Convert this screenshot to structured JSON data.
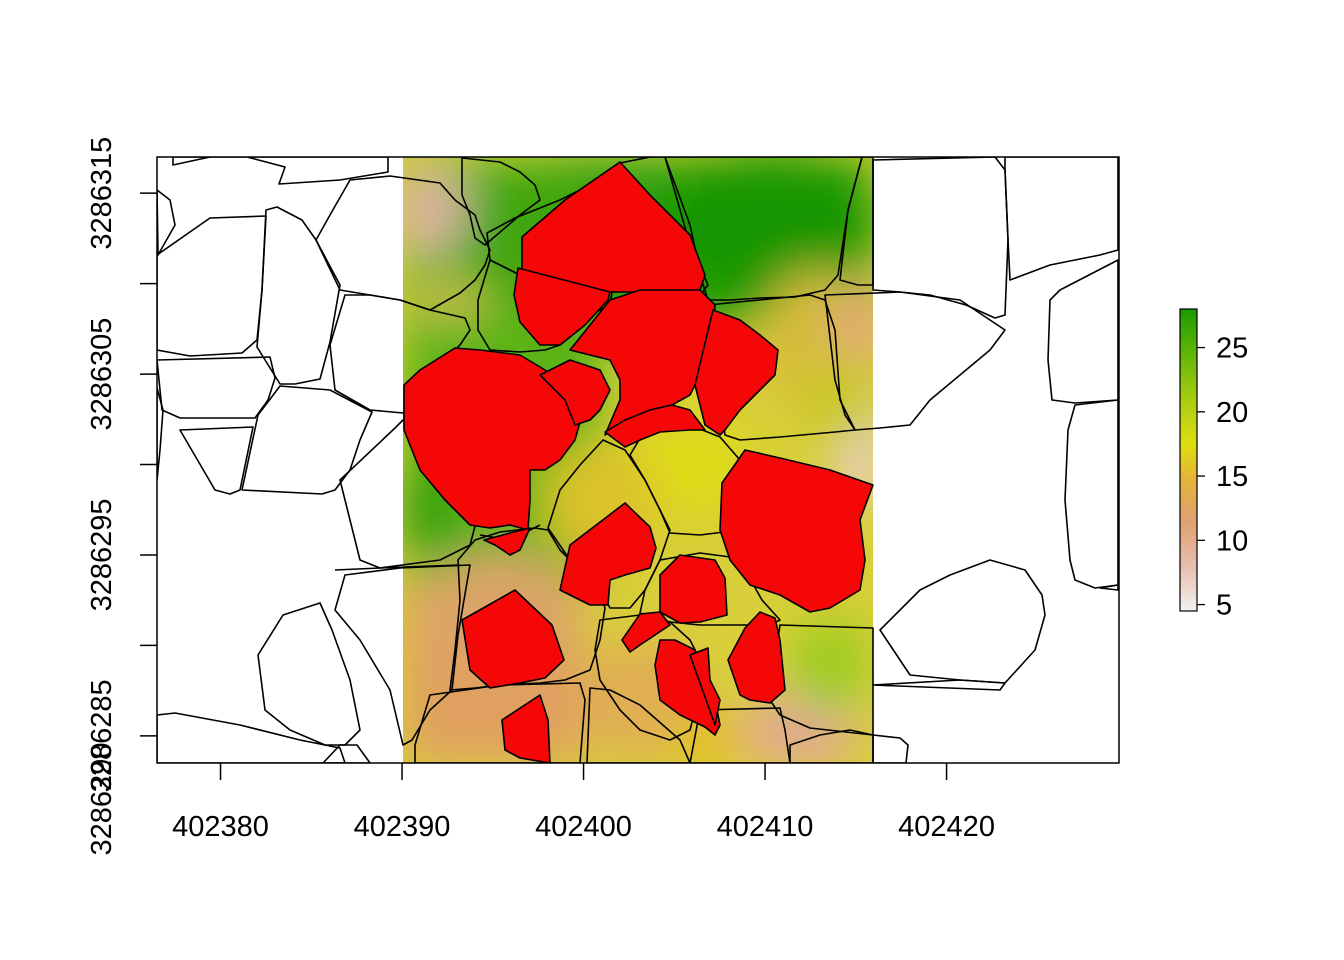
{
  "chart_data": {
    "type": "heatmap",
    "title": "",
    "xlabel": "",
    "ylabel": "",
    "xlim": [
      402376.5,
      402429.5
    ],
    "ylim": [
      3286283.5,
      3286317
    ],
    "raster_extent": {
      "x": [
        402390,
        402416
      ],
      "y": [
        3286283.5,
        3286317
      ]
    },
    "x_ticks": [
      402380,
      402390,
      402400,
      402410,
      402420
    ],
    "y_ticks": [
      3286285,
      3286290,
      3286295,
      3286300,
      3286305,
      3286310,
      3286315
    ],
    "x_tick_labels": [
      "402380",
      "402390",
      "402400",
      "402410",
      "402420"
    ],
    "y_tick_labels": [
      "3286285",
      "",
      "3286295",
      "",
      "3286305",
      "",
      "3286315"
    ],
    "legend": {
      "placement": "right",
      "range": [
        4.5,
        28
      ],
      "ticks": [
        5,
        10,
        15,
        20,
        25
      ],
      "tick_labels": [
        "5",
        "10",
        "15",
        "20",
        "25"
      ],
      "colors": [
        "#f2f2f2",
        "#e8c0b0",
        "#e0a070",
        "#e4b438",
        "#dede10",
        "#a8cc10",
        "#66b808",
        "#1a9a00"
      ]
    },
    "polygon_fill_red": "#f50707",
    "outline_color": "#000000"
  }
}
